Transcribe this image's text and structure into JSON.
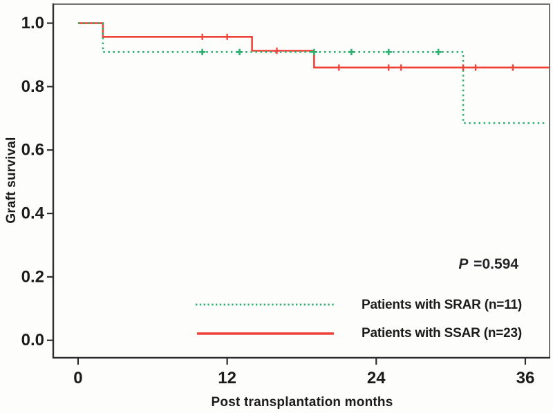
{
  "figure": {
    "background": "#fdfdfc",
    "frame_color": "#6e7072",
    "axis_color": "#2d2d2f",
    "text_color": "#1b1b1b"
  },
  "chart_data": {
    "type": "line",
    "subtype": "kaplan-meier-step",
    "title": "",
    "xlabel": "Post transplantation months",
    "ylabel": "Graft survival",
    "xlim": [
      -2,
      37.95
    ],
    "ylim": [
      -0.055,
      1.06
    ],
    "x_ticks": [
      0,
      12,
      24,
      36
    ],
    "y_ticks": [
      "1.0",
      "0.8",
      "0.6",
      "0.4",
      "0.2",
      "0.0"
    ],
    "grid": false,
    "legend_position": "inside-bottom-right",
    "annotation": {
      "p_italic": "P",
      "p_rest": " =0.594"
    },
    "series": [
      {
        "key": "srar",
        "name": "Patients with SRAR (n=11)",
        "color": "#2db170",
        "line_style": "dotted",
        "steps": [
          [
            0,
            1.0
          ],
          [
            2,
            1.0
          ],
          [
            2,
            0.909
          ],
          [
            31,
            0.909
          ],
          [
            31,
            0.685
          ],
          [
            37.6,
            0.685
          ]
        ],
        "censor_marks": [
          [
            10,
            0.909
          ],
          [
            13,
            0.909
          ],
          [
            19,
            0.909
          ],
          [
            22,
            0.909
          ],
          [
            25,
            0.909
          ],
          [
            29,
            0.909
          ]
        ]
      },
      {
        "key": "ssar",
        "name": "Patients with SSAR (n=23)",
        "color": "#ef4136",
        "line_style": "solid",
        "steps": [
          [
            0,
            1.0
          ],
          [
            2,
            1.0
          ],
          [
            2,
            0.957
          ],
          [
            14,
            0.957
          ],
          [
            14,
            0.913
          ],
          [
            19,
            0.913
          ],
          [
            19,
            0.86
          ],
          [
            37.95,
            0.86
          ]
        ],
        "censor_marks": [
          [
            10,
            0.957
          ],
          [
            12,
            0.957
          ],
          [
            16,
            0.913
          ],
          [
            21,
            0.86
          ],
          [
            25,
            0.86
          ],
          [
            26,
            0.86
          ],
          [
            31,
            0.86
          ],
          [
            32,
            0.86
          ],
          [
            35,
            0.86
          ]
        ]
      }
    ]
  }
}
